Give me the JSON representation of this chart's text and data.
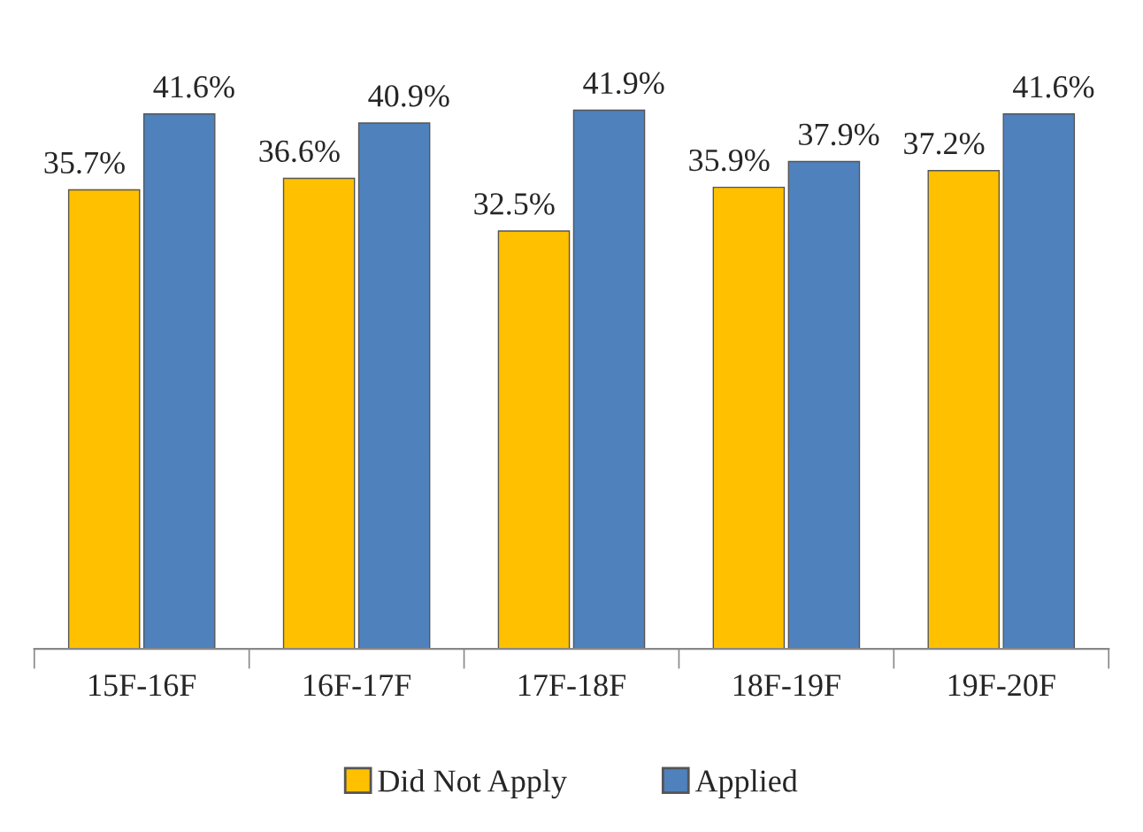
{
  "chart_data": {
    "type": "bar",
    "categories": [
      "15F-16F",
      "16F-17F",
      "17F-18F",
      "18F-19F",
      "19F-20F"
    ],
    "series": [
      {
        "name": "Did Not Apply",
        "color": "#ffc000",
        "values": [
          35.7,
          36.6,
          32.5,
          35.9,
          37.2
        ],
        "value_labels": [
          "35.7%",
          "36.6%",
          "32.5%",
          "35.9%",
          "37.2%"
        ]
      },
      {
        "name": "Applied",
        "color": "#4f81bd",
        "values": [
          41.6,
          40.9,
          41.9,
          37.9,
          41.6
        ],
        "value_labels": [
          "41.6%",
          "40.9%",
          "41.9%",
          "37.9%",
          "41.6%"
        ]
      }
    ],
    "legend": "bottom",
    "grid": false
  }
}
